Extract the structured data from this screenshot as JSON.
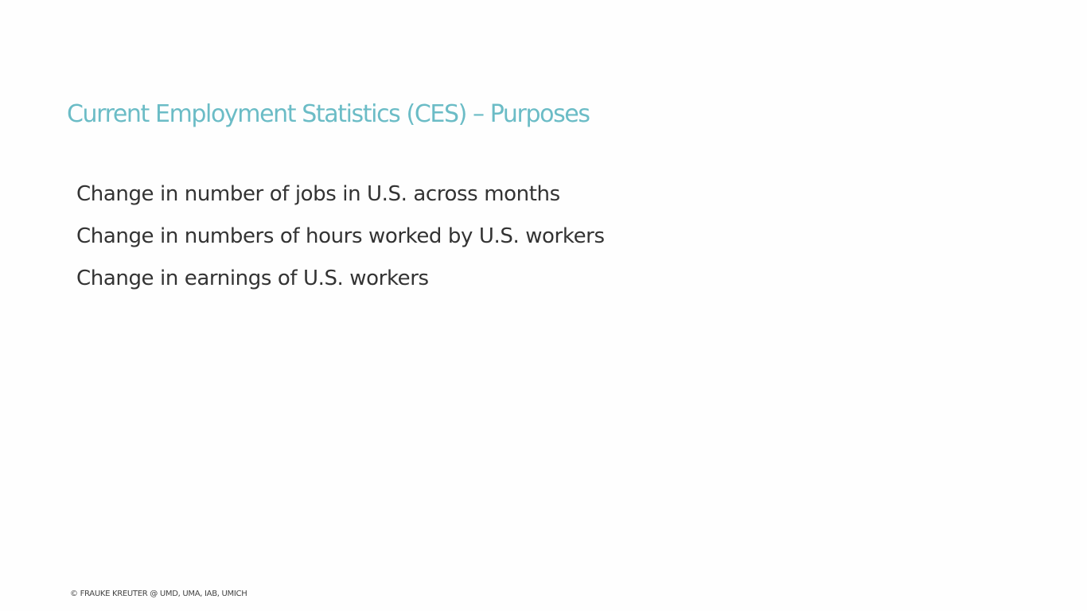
{
  "slide": {
    "title": "Current Employment Statistics (CES) – Purposes",
    "bullets": [
      "Change in number of jobs in U.S. across months",
      "Change in numbers of hours worked by U.S. workers",
      "Change in earnings of U.S. workers"
    ],
    "footer": "© FRAUKE KREUTER @ UMD, UMA, IAB,  UMICH"
  },
  "colors": {
    "title": "#6bbcc6",
    "body_text": "#333333",
    "background": "#fefefe"
  }
}
